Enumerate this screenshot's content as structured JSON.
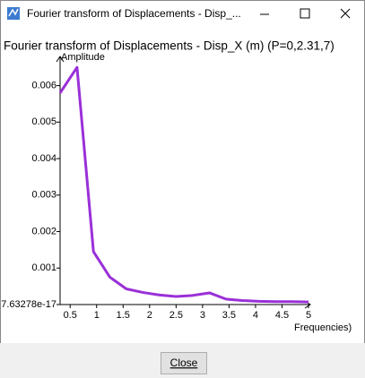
{
  "window": {
    "title": "Fourier transform of Displacements - Disp_..."
  },
  "chart_data": {
    "type": "line",
    "title": "Fourier transform of Displacements - Disp_X (m) (P=0,2.31,7)",
    "x_label": "Frequencies)",
    "y_label": "Amplitude",
    "x": [
      0.31,
      0.63,
      0.94,
      1.25,
      1.56,
      1.88,
      2.19,
      2.5,
      2.81,
      3.13,
      3.44,
      3.75,
      4.06,
      4.38,
      4.69,
      5.0
    ],
    "series": [
      {
        "name": "Disp_X",
        "color": "#9a30d8",
        "values": [
          0.0058,
          0.0065,
          0.00145,
          0.00075,
          0.00043,
          0.00033,
          0.00026,
          0.00022,
          0.00025,
          0.00032,
          0.00015,
          0.00011,
          9e-05,
          8e-05,
          8e-05,
          7e-05
        ]
      }
    ],
    "xlim": [
      0.31,
      5.0
    ],
    "ylim": [
      7.63278e-17,
      0.0068
    ],
    "xticks": [
      0.5,
      1,
      1.5,
      2,
      2.5,
      3,
      3.5,
      4,
      4.5,
      5
    ],
    "yticks": [
      {
        "value": 7.63278e-17,
        "label": "7.63278e-17"
      },
      0.001,
      0.002,
      0.003,
      0.004,
      0.005,
      0.006
    ],
    "grid": false
  },
  "buttons": {
    "close": "Close"
  }
}
